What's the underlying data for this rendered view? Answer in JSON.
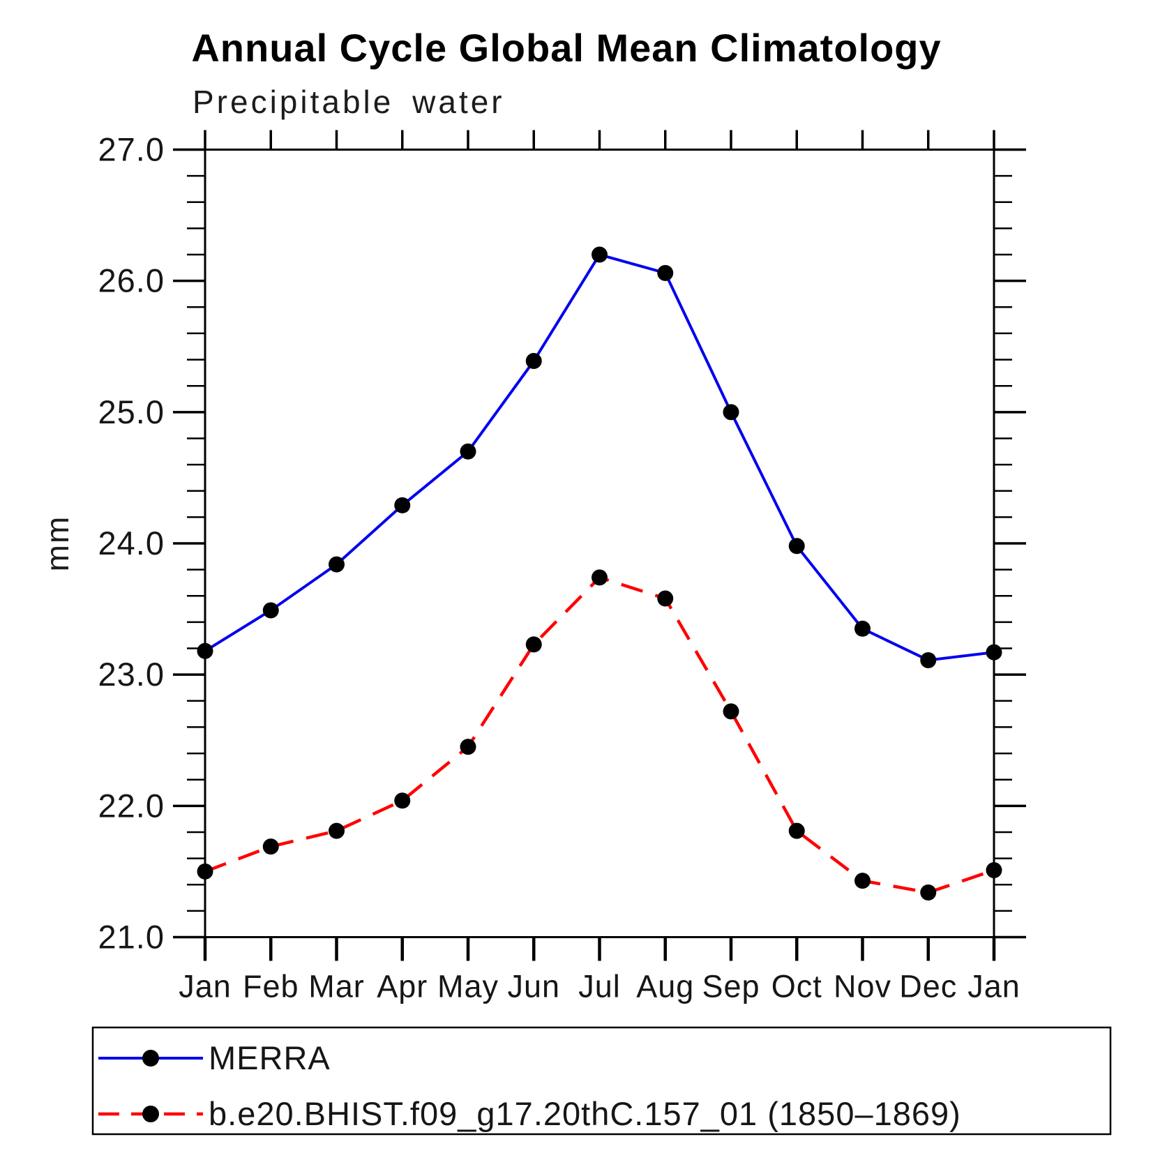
{
  "page": {
    "background": "#ffffff"
  },
  "chart_data": {
    "type": "line",
    "title": "Annual Cycle Global Mean Climatology",
    "subtitle": "Precipitable water",
    "ylabel": "mm",
    "xlabel": "",
    "categories": [
      "Jan",
      "Feb",
      "Mar",
      "Apr",
      "May",
      "Jun",
      "Jul",
      "Aug",
      "Sep",
      "Oct",
      "Nov",
      "Dec",
      "Jan"
    ],
    "ylim": [
      21.0,
      27.0
    ],
    "ytick_interval": 1.0,
    "yminor_interval": 0.2,
    "ytick_labels": [
      "21.0",
      "22.0",
      "23.0",
      "24.0",
      "25.0",
      "26.0",
      "27.0"
    ],
    "grid": false,
    "legend_position": "bottom-left",
    "axis_color": "#000000",
    "marker_color": "#000000",
    "series": [
      {
        "name": "MERRA",
        "color": "#0000ee",
        "style": "solid",
        "marker": "circle",
        "values": [
          23.18,
          23.49,
          23.84,
          24.29,
          24.7,
          25.39,
          26.2,
          26.06,
          25.0,
          23.98,
          23.35,
          23.11,
          23.17
        ]
      },
      {
        "name": "b.e20.BHIST.f09_g17.20thC.157_01 (1850–1869)",
        "color": "#ff0000",
        "style": "dashed",
        "marker": "circle",
        "values": [
          21.5,
          21.69,
          21.81,
          22.04,
          22.45,
          23.23,
          23.74,
          23.58,
          22.72,
          21.81,
          21.43,
          21.34,
          21.51
        ]
      }
    ]
  }
}
